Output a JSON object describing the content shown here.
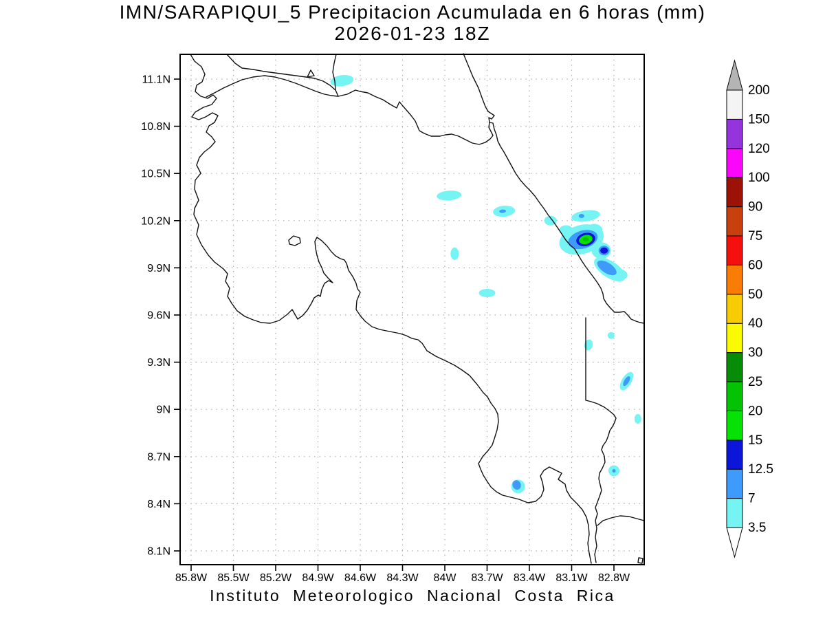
{
  "title": {
    "line1": "IMN/SARAPIQUI_5 Precipitacion Acumulada en 6 horas (mm)",
    "line2": "2026-01-23 18Z"
  },
  "footer": "Instituto Meteorologico Nacional Costa Rica",
  "axes": {
    "lat_ticks": [
      "11.1N",
      "10.8N",
      "10.5N",
      "10.2N",
      "9.9N",
      "9.6N",
      "9.3N",
      "9N",
      "8.7N",
      "8.4N",
      "8.1N"
    ],
    "lon_ticks": [
      "85.8W",
      "85.5W",
      "85.2W",
      "84.9W",
      "84.6W",
      "84.3W",
      "84W",
      "83.7W",
      "83.4W",
      "83.1W",
      "82.8W"
    ]
  },
  "colorbar": {
    "levels_low_to_high": [
      "3.5",
      "7",
      "12.5",
      "15",
      "20",
      "25",
      "30",
      "40",
      "50",
      "60",
      "75",
      "90",
      "100",
      "120",
      "150",
      "200"
    ],
    "colors_low_to_high": [
      "#76f3f3",
      "#3e9bfb",
      "#0b16d8",
      "#06e106",
      "#04c204",
      "#078c07",
      "#fafa04",
      "#f8cc04",
      "#f87c06",
      "#f51010",
      "#c8400e",
      "#9c1206",
      "#fa06fa",
      "#9434dc",
      "#f4f4f4"
    ],
    "over_color": "#b4b4b4",
    "under_color": "#ffffff"
  },
  "chart_data": {
    "type": "heatmap",
    "title": "IMN/SARAPIQUI_5 Precipitacion Acumulada en 6 horas (mm)",
    "subtitle": "2026-01-23 18Z",
    "variable": "Precipitacion Acumulada en 6 horas",
    "units": "mm",
    "valid_time": "2026-01-23 18Z",
    "region": "Costa Rica",
    "lat_range_n": [
      8.0,
      11.26
    ],
    "lon_range_w": [
      85.88,
      82.58
    ],
    "grid": true,
    "legend_position": "right",
    "contour_levels_mm": [
      3.5,
      7,
      12.5,
      15,
      20,
      25,
      30,
      40,
      50,
      60,
      75,
      90,
      100,
      120,
      150,
      200
    ],
    "max_shaded_bin_mm": "20-25",
    "blobs": [
      {
        "lon_w": 84.73,
        "lat": 11.09,
        "mm": "3.5",
        "rx": 17,
        "ry": 8,
        "rot": -8
      },
      {
        "lon_w": 83.97,
        "lat": 10.36,
        "mm": "3.5",
        "rx": 18,
        "ry": 7,
        "rot": -4
      },
      {
        "lon_w": 83.58,
        "lat": 10.26,
        "mm": "3.5",
        "rx": 16,
        "ry": 8,
        "rot": -5
      },
      {
        "lon_w": 83.59,
        "lat": 10.26,
        "mm": "7",
        "rx": 5,
        "ry": 2.5,
        "rot": -5
      },
      {
        "lon_w": 83.25,
        "lat": 10.2,
        "mm": "3.5",
        "rx": 9,
        "ry": 7,
        "rot": 0
      },
      {
        "lon_w": 83.0,
        "lat": 10.23,
        "mm": "3.5",
        "rx": 21,
        "ry": 8,
        "rot": -8
      },
      {
        "lon_w": 83.03,
        "lat": 10.23,
        "mm": "7",
        "rx": 4,
        "ry": 3,
        "rot": 0
      },
      {
        "lon_w": 83.03,
        "lat": 10.08,
        "mm": "3.5",
        "rx": 33,
        "ry": 21,
        "rot": -16
      },
      {
        "lon_w": 82.94,
        "lat": 10.14,
        "mm": "3.5",
        "rx": 12,
        "ry": 9,
        "rot": 0
      },
      {
        "lon_w": 83.14,
        "lat": 10.14,
        "mm": "3.5",
        "rx": 10,
        "ry": 7,
        "rot": 0
      },
      {
        "lon_w": 82.89,
        "lat": 10.01,
        "mm": "3.5",
        "rx": 14,
        "ry": 12,
        "rot": 0
      },
      {
        "lon_w": 83.02,
        "lat": 10.08,
        "mm": "7",
        "rx": 22,
        "ry": 13,
        "rot": -16
      },
      {
        "lon_w": 83.0,
        "lat": 10.08,
        "mm": "12.5",
        "rx": 14,
        "ry": 9.5,
        "rot": -14
      },
      {
        "lon_w": 83.0,
        "lat": 10.08,
        "mm": "15",
        "rx": 10,
        "ry": 6.5,
        "rot": -14
      },
      {
        "lon_w": 83.0,
        "lat": 10.08,
        "mm": "20",
        "rx": 4,
        "ry": 3,
        "rot": 0
      },
      {
        "lon_w": 82.87,
        "lat": 10.01,
        "mm": "7",
        "rx": 8,
        "ry": 7,
        "rot": 0
      },
      {
        "lon_w": 82.87,
        "lat": 10.01,
        "mm": "12.5",
        "rx": 5.5,
        "ry": 4.5,
        "rot": 0
      },
      {
        "lon_w": 82.83,
        "lat": 9.89,
        "mm": "3.5",
        "rx": 26,
        "ry": 12,
        "rot": 33
      },
      {
        "lon_w": 82.74,
        "lat": 9.86,
        "mm": "3.5",
        "rx": 8,
        "ry": 6,
        "rot": 33
      },
      {
        "lon_w": 82.85,
        "lat": 9.9,
        "mm": "7",
        "rx": 16,
        "ry": 7.5,
        "rot": 33
      },
      {
        "lon_w": 83.93,
        "lat": 9.99,
        "mm": "3.5",
        "rx": 6,
        "ry": 9,
        "rot": 0
      },
      {
        "lon_w": 83.7,
        "lat": 9.74,
        "mm": "3.5",
        "rx": 12,
        "ry": 6,
        "rot": 0
      },
      {
        "lon_w": 82.82,
        "lat": 9.47,
        "mm": "3.5",
        "rx": 5,
        "ry": 5,
        "rot": 0
      },
      {
        "lon_w": 82.98,
        "lat": 9.41,
        "mm": "3.5",
        "rx": 6,
        "ry": 8,
        "rot": 12
      },
      {
        "lon_w": 82.71,
        "lat": 9.18,
        "mm": "3.5",
        "rx": 15,
        "ry": 7,
        "rot": -59
      },
      {
        "lon_w": 82.71,
        "lat": 9.18,
        "mm": "7",
        "rx": 8,
        "ry": 3.5,
        "rot": -59
      },
      {
        "lon_w": 82.63,
        "lat": 8.94,
        "mm": "3.5",
        "rx": 5,
        "ry": 7,
        "rot": 0
      },
      {
        "lon_w": 82.8,
        "lat": 8.61,
        "mm": "3.5",
        "rx": 8,
        "ry": 8,
        "rot": 0
      },
      {
        "lon_w": 82.8,
        "lat": 8.61,
        "mm": "7",
        "rx": 2.5,
        "ry": 2.5,
        "rot": 0
      },
      {
        "lon_w": 83.48,
        "lat": 8.51,
        "mm": "3.5",
        "rx": 10,
        "ry": 10,
        "rot": 0
      },
      {
        "lon_w": 83.49,
        "lat": 8.52,
        "mm": "7",
        "rx": 6,
        "ry": 7,
        "rot": -20
      }
    ]
  }
}
